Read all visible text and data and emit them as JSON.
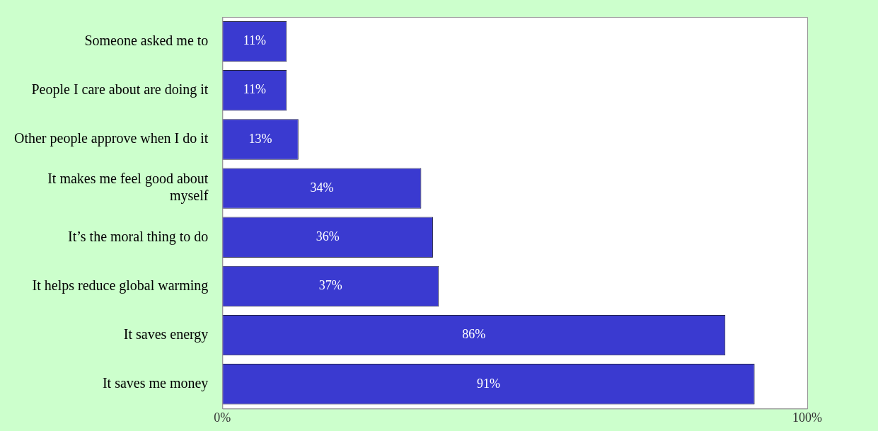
{
  "chart_data": {
    "type": "bar",
    "orientation": "horizontal",
    "categories": [
      "Someone asked me to",
      "People I care about are doing it",
      "Other people approve when I do it",
      "It makes me feel good about myself",
      "It’s the moral thing to do",
      "It helps reduce global warming",
      "It saves energy",
      "It saves me money"
    ],
    "values": [
      11,
      11,
      13,
      34,
      36,
      37,
      86,
      91
    ],
    "value_labels": [
      "11%",
      "11%",
      "13%",
      "34%",
      "36%",
      "37%",
      "86%",
      "91%"
    ],
    "color": "#3a3ad0",
    "xlim": [
      0,
      100
    ],
    "xticks": [
      {
        "value": 0,
        "label": "0%"
      },
      {
        "value": 100,
        "label": "100%"
      }
    ],
    "grid": false,
    "legend": false
  }
}
